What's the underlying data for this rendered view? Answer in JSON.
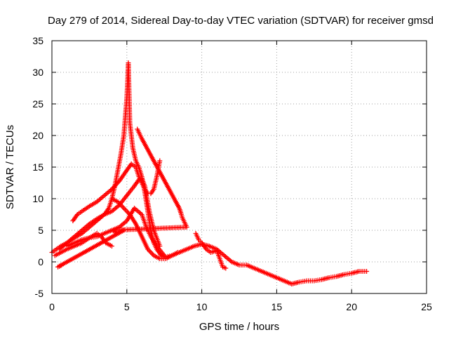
{
  "chart_data": {
    "type": "scatter",
    "title": "Day 279 of 2014, Sidereal Day-to-day VTEC variation (SDTVAR) for receiver gmsd",
    "xlabel": "GPS time / hours",
    "ylabel": "SDTVAR / TECUs",
    "xlim": [
      0,
      25
    ],
    "ylim": [
      -5,
      35
    ],
    "xticks": [
      0,
      5,
      10,
      15,
      20,
      25
    ],
    "yticks": [
      -5,
      0,
      5,
      10,
      15,
      20,
      25,
      30,
      35
    ],
    "xtick_labels": [
      "0",
      "5",
      "10",
      "15",
      "20",
      "25"
    ],
    "ytick_labels": [
      "-5",
      "0",
      "5",
      "10",
      "15",
      "20",
      "25",
      "30",
      "35"
    ],
    "grid": true,
    "marker": "+",
    "color": "#ff0000",
    "series": [
      {
        "name": "main-peak-track",
        "x": [
          0.0,
          0.3,
          0.6,
          1.0,
          1.5,
          2.0,
          2.5,
          3.0,
          3.5,
          3.8,
          4.0,
          4.2,
          4.4,
          4.6,
          4.8,
          4.9,
          5.0,
          5.05,
          5.1,
          5.2,
          5.4,
          5.6,
          5.8,
          6.0,
          6.2,
          6.4,
          6.6,
          6.8,
          7.0,
          7.3,
          7.6,
          8.0
        ],
        "y": [
          1.5,
          2.0,
          2.5,
          3.0,
          3.8,
          4.5,
          5.5,
          6.5,
          7.5,
          8.5,
          10.0,
          12.0,
          14.5,
          17.0,
          20.0,
          23.0,
          26.0,
          28.5,
          31.5,
          22.0,
          18.0,
          16.0,
          15.0,
          13.5,
          11.0,
          8.0,
          5.0,
          3.0,
          2.0,
          1.0,
          0.8,
          1.0
        ]
      },
      {
        "name": "upper-arc-track",
        "x": [
          1.4,
          1.7,
          2.0,
          2.5,
          3.0,
          3.5,
          4.0,
          4.5,
          5.0,
          5.3,
          5.6,
          5.8,
          6.0,
          6.2,
          6.4,
          6.6,
          6.8,
          7.0,
          7.2
        ],
        "y": [
          6.5,
          7.5,
          8.0,
          8.8,
          9.5,
          10.5,
          11.5,
          12.8,
          14.5,
          15.5,
          15.0,
          13.5,
          12.5,
          11.5,
          10.8,
          10.8,
          11.5,
          13.5,
          16.0
        ]
      },
      {
        "name": "rising-cross-track",
        "x": [
          0.5,
          1.0,
          1.5,
          2.0,
          2.5,
          3.0,
          3.5,
          4.0,
          4.5,
          5.0,
          5.5,
          5.8,
          6.0,
          6.2,
          6.5,
          6.8,
          7.2
        ],
        "y": [
          2.0,
          3.0,
          4.0,
          5.0,
          6.0,
          6.8,
          7.5,
          8.0,
          9.0,
          10.5,
          12.0,
          13.0,
          13.2,
          12.0,
          8.0,
          5.0,
          2.5
        ]
      },
      {
        "name": "mid-loop-track",
        "x": [
          1.0,
          1.5,
          2.0,
          2.5,
          3.0,
          3.5,
          4.0,
          4.5,
          5.0,
          5.5,
          6.0,
          6.3,
          6.6,
          7.0,
          7.5
        ],
        "y": [
          2.5,
          3.0,
          3.5,
          3.8,
          4.0,
          4.5,
          5.0,
          5.5,
          6.5,
          8.5,
          7.5,
          5.5,
          4.0,
          2.5,
          1.0
        ]
      },
      {
        "name": "low-bump-track",
        "x": [
          0.2,
          0.6,
          1.0,
          1.5,
          2.0,
          2.5,
          3.0,
          3.3,
          3.6,
          4.0
        ],
        "y": [
          1.0,
          1.5,
          2.0,
          2.5,
          3.0,
          3.8,
          4.5,
          4.0,
          3.0,
          2.5
        ]
      },
      {
        "name": "descending-track",
        "x": [
          4.0,
          4.4,
          4.8,
          5.2,
          5.6,
          6.0,
          6.4,
          6.8,
          7.2,
          7.6,
          8.0,
          8.4
        ],
        "y": [
          10.0,
          9.5,
          8.5,
          7.5,
          6.0,
          4.0,
          2.0,
          1.0,
          0.5,
          0.5,
          1.0,
          1.5
        ]
      },
      {
        "name": "short-tracks",
        "x": [
          5.7,
          5.8,
          5.9,
          6.0,
          8.5,
          8.6,
          8.7,
          8.8,
          8.9,
          9.0,
          4.0,
          4.2,
          4.4,
          4.6,
          4.8,
          0.4,
          0.5,
          0.6
        ],
        "y": [
          21.0,
          20.5,
          20.0,
          19.5,
          8.5,
          7.8,
          7.0,
          6.5,
          6.0,
          5.5,
          5.0,
          4.8,
          4.6,
          4.8,
          5.0,
          -0.8,
          -0.7,
          -0.6
        ]
      },
      {
        "name": "late-day-track",
        "x": [
          8.0,
          8.5,
          9.0,
          9.5,
          10.0,
          10.5,
          11.0,
          11.5,
          12.0,
          12.5,
          13.0,
          13.5,
          14.0,
          14.5,
          15.0,
          15.5,
          16.0,
          16.5,
          17.0,
          17.5,
          18.0,
          18.5,
          19.0,
          19.5,
          20.0,
          20.5,
          21.0
        ],
        "y": [
          1.0,
          1.5,
          2.0,
          2.5,
          2.8,
          2.5,
          2.0,
          1.0,
          0.0,
          -0.5,
          -0.5,
          -1.0,
          -1.5,
          -2.0,
          -2.5,
          -3.0,
          -3.5,
          -3.2,
          -3.0,
          -3.0,
          -2.8,
          -2.5,
          -2.3,
          -2.0,
          -1.8,
          -1.5,
          -1.5
        ]
      },
      {
        "name": "late-day-side-track",
        "x": [
          9.6,
          9.8,
          10.0,
          10.3,
          10.6,
          11.0,
          11.2,
          11.4,
          11.6
        ],
        "y": [
          4.5,
          3.5,
          3.0,
          2.0,
          1.5,
          1.8,
          0.5,
          -0.8,
          -1.0
        ]
      }
    ]
  }
}
